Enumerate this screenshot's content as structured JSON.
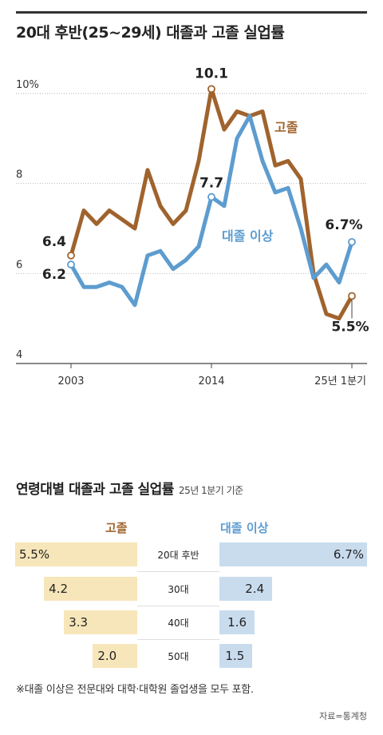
{
  "title": "20대 후반(25~29세) 대졸과 고졸 실업률",
  "chart_data": [
    {
      "type": "line",
      "title": "20대 후반(25~29세) 대졸과 고졸 실업률",
      "x_labels": [
        "2003",
        "2014",
        "25년 1분기"
      ],
      "y_ticks": [
        "10%",
        "8",
        "6",
        "4"
      ],
      "ylim": [
        4,
        10.5
      ],
      "grid": true,
      "series": [
        {
          "name": "고졸",
          "color": "#a0632d",
          "values": [
            6.4,
            7.4,
            7.1,
            7.4,
            7.2,
            7.0,
            8.3,
            7.5,
            7.1,
            7.4,
            8.5,
            10.1,
            9.2,
            9.6,
            9.5,
            9.6,
            8.4,
            8.5,
            8.1,
            6.0,
            5.1,
            5.0,
            5.5
          ],
          "labels": [
            {
              "index": 0,
              "text": "6.4"
            },
            {
              "index": 11,
              "text": "10.1"
            },
            {
              "index": 22,
              "text": "5.5%"
            }
          ],
          "label": "고졸"
        },
        {
          "name": "대졸 이상",
          "color": "#5d9ccf",
          "values": [
            6.2,
            5.7,
            5.7,
            5.8,
            5.7,
            5.3,
            6.4,
            6.5,
            6.1,
            6.3,
            6.6,
            7.7,
            7.5,
            9.0,
            9.5,
            8.5,
            7.8,
            7.9,
            7.0,
            5.9,
            6.2,
            5.8,
            6.7
          ],
          "labels": [
            {
              "index": 0,
              "text": "6.2"
            },
            {
              "index": 11,
              "text": "7.7"
            },
            {
              "index": 22,
              "text": "6.7%"
            }
          ],
          "label": "대졸 이상"
        }
      ]
    },
    {
      "type": "bar",
      "title": "연령대별 대졸과 고졸 실업률",
      "subtitle": "25년 1분기 기준",
      "categories": [
        "20대 후반",
        "30대",
        "40대",
        "50대"
      ],
      "series": [
        {
          "name": "고졸",
          "color": "#f7e6b9",
          "values": [
            5.5,
            4.2,
            3.3,
            2.0
          ],
          "labels": [
            "5.5%",
            "4.2",
            "3.3",
            "2.0"
          ]
        },
        {
          "name": "대졸 이상",
          "color": "#c9dcee",
          "values": [
            6.7,
            2.4,
            1.6,
            1.5
          ],
          "labels": [
            "6.7%",
            "2.4",
            "1.6",
            "1.5"
          ]
        }
      ]
    }
  ],
  "section2": {
    "title": "연령대별 대졸과 고졸 실업률",
    "subtitle": "25년 1분기 기준",
    "left_header": "고졸",
    "right_header": "대졸 이상"
  },
  "note": "※대졸 이상은 전문대와 대학·대학원 졸업생을 모두 포함.",
  "source": "자료=통계청"
}
